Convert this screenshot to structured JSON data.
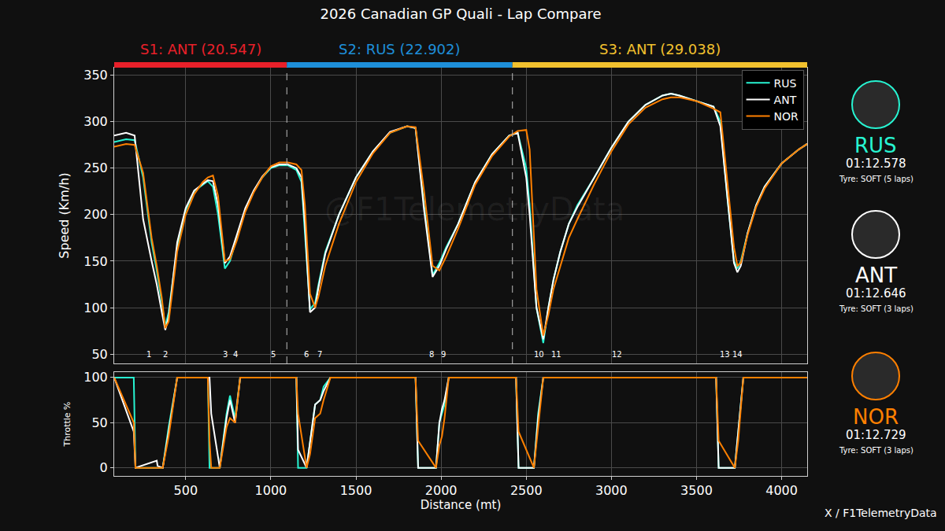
{
  "title": "2026 Canadian GP Quali - Lap Compare",
  "watermark": "@F1TelemetryData",
  "footer": "X / F1TelemetryData",
  "drivers": [
    {
      "code": "RUS",
      "color": "#27f4d2",
      "lap_time": "01:12.578",
      "tyre": "Tyre: SOFT (5 laps)"
    },
    {
      "code": "ANT",
      "color": "#ffffff",
      "lap_time": "01:12.646",
      "tyre": "Tyre: SOFT (3 laps)"
    },
    {
      "code": "NOR",
      "color": "#ff8000",
      "lap_time": "01:12.729",
      "tyre": "Tyre: SOFT (3 laps)"
    }
  ],
  "chart_data": [
    {
      "type": "line",
      "y_label": "Speed (Km/h)",
      "xlim": [
        80,
        4150
      ],
      "xticks": [
        500,
        1000,
        1500,
        2000,
        2500,
        3000,
        3500,
        4000
      ],
      "ylim": [
        40,
        358
      ],
      "yticks": [
        50,
        100,
        150,
        200,
        250,
        300,
        350
      ],
      "grid": true,
      "legend": "top right",
      "sectors": [
        {
          "label": "S1: ANT (20.547)",
          "color": "#e8202a"
        },
        {
          "label": "S2: RUS (22.902)",
          "color": "#1e8fd9"
        },
        {
          "label": "S3: ANT (29.038)",
          "color": "#f2c12e"
        }
      ],
      "sector_boundaries": [
        1094,
        2419
      ],
      "turns": [
        {
          "label": "1",
          "x": 282
        },
        {
          "label": "2",
          "x": 379
        },
        {
          "label": "3",
          "x": 734
        },
        {
          "label": "4",
          "x": 794
        },
        {
          "label": "5",
          "x": 1016
        },
        {
          "label": "6",
          "x": 1209
        },
        {
          "label": "7",
          "x": 1288
        },
        {
          "label": "8",
          "x": 1943
        },
        {
          "label": "9",
          "x": 2012
        },
        {
          "label": "10",
          "x": 2576
        },
        {
          "label": "11",
          "x": 2678
        },
        {
          "label": "12",
          "x": 3033
        },
        {
          "label": "13",
          "x": 3665
        },
        {
          "label": "14",
          "x": 3740
        }
      ],
      "x": [
        80,
        150,
        200,
        250,
        300,
        330,
        360,
        380,
        400,
        450,
        500,
        550,
        600,
        630,
        660,
        690,
        730,
        760,
        800,
        850,
        900,
        950,
        1000,
        1050,
        1100,
        1150,
        1180,
        1200,
        1230,
        1260,
        1280,
        1320,
        1400,
        1500,
        1600,
        1700,
        1800,
        1850,
        1900,
        1950,
        1990,
        2030,
        2100,
        2200,
        2300,
        2400,
        2450,
        2500,
        2520,
        2560,
        2600,
        2630,
        2660,
        2700,
        2750,
        2800,
        2900,
        3000,
        3100,
        3200,
        3300,
        3350,
        3400,
        3500,
        3600,
        3640,
        3680,
        3720,
        3740,
        3760,
        3800,
        3850,
        3900,
        4000,
        4100,
        4150
      ],
      "series": [
        {
          "name": "RUS",
          "color": "#27f4d2",
          "line_style": "solid",
          "values": [
            278,
            281,
            280,
            240,
            170,
            140,
            105,
            80,
            95,
            165,
            205,
            225,
            232,
            236,
            230,
            200,
            142,
            150,
            175,
            205,
            225,
            240,
            250,
            253,
            253,
            248,
            235,
            180,
            98,
            105,
            125,
            160,
            200,
            240,
            268,
            288,
            295,
            293,
            210,
            135,
            148,
            165,
            190,
            235,
            265,
            285,
            288,
            250,
            210,
            100,
            62,
            100,
            130,
            160,
            190,
            210,
            240,
            272,
            300,
            318,
            328,
            330,
            328,
            322,
            316,
            300,
            220,
            150,
            142,
            150,
            180,
            210,
            230,
            255,
            270,
            276
          ]
        },
        {
          "name": "ANT",
          "color": "#ffffff",
          "line_style": "solid",
          "values": [
            285,
            288,
            285,
            195,
            150,
            125,
            95,
            76,
            90,
            170,
            207,
            226,
            233,
            237,
            236,
            210,
            148,
            155,
            178,
            207,
            226,
            241,
            251,
            254,
            254,
            250,
            240,
            190,
            95,
            100,
            122,
            158,
            200,
            240,
            268,
            289,
            295,
            293,
            205,
            133,
            145,
            163,
            190,
            235,
            265,
            285,
            288,
            240,
            200,
            100,
            66,
            100,
            130,
            160,
            190,
            208,
            240,
            272,
            300,
            318,
            328,
            330,
            328,
            322,
            316,
            295,
            220,
            148,
            138,
            145,
            180,
            210,
            230,
            255,
            270,
            276
          ]
        },
        {
          "name": "NOR",
          "color": "#ff8000",
          "line_style": "solid",
          "values": [
            273,
            276,
            275,
            245,
            175,
            145,
            110,
            78,
            85,
            160,
            200,
            222,
            235,
            240,
            242,
            220,
            150,
            152,
            172,
            203,
            224,
            240,
            252,
            256,
            256,
            254,
            248,
            210,
            115,
            100,
            112,
            145,
            190,
            235,
            266,
            288,
            295,
            294,
            225,
            145,
            140,
            155,
            185,
            232,
            263,
            284,
            290,
            291,
            270,
            120,
            70,
            92,
            120,
            145,
            175,
            195,
            233,
            268,
            297,
            315,
            324,
            326,
            326,
            322,
            314,
            310,
            240,
            165,
            145,
            148,
            178,
            208,
            228,
            255,
            270,
            276
          ]
        }
      ]
    },
    {
      "type": "line",
      "x_label": "Distance (mt)",
      "y_label": "Throttle %",
      "xlim": [
        80,
        4150
      ],
      "xticks": [
        500,
        1000,
        1500,
        2000,
        2500,
        3000,
        3500,
        4000
      ],
      "ylim": [
        -9,
        106
      ],
      "yticks": [
        0,
        50,
        100
      ],
      "grid": true,
      "x": [
        80,
        195,
        205,
        330,
        335,
        365,
        400,
        450,
        630,
        640,
        650,
        700,
        740,
        760,
        790,
        820,
        1150,
        1160,
        1210,
        1230,
        1260,
        1290,
        1310,
        1350,
        1850,
        1865,
        1970,
        1990,
        2005,
        2020,
        2045,
        2440,
        2455,
        2545,
        2570,
        2600,
        3615,
        3630,
        3725,
        3745,
        3775,
        4150
      ],
      "series": [
        {
          "name": "RUS",
          "color": "#27f4d2",
          "line_style": "solid",
          "values": [
            100,
            100,
            0,
            0,
            0,
            0,
            45,
            100,
            100,
            0,
            0,
            0,
            60,
            80,
            55,
            100,
            100,
            0,
            0,
            30,
            70,
            75,
            90,
            100,
            100,
            0,
            0,
            50,
            60,
            70,
            100,
            100,
            0,
            0,
            60,
            100,
            100,
            0,
            0,
            40,
            100,
            100
          ]
        },
        {
          "name": "ANT",
          "color": "#ffffff",
          "line_style": "solid",
          "values": [
            100,
            40,
            0,
            8,
            2,
            0,
            40,
            100,
            100,
            100,
            60,
            0,
            55,
            75,
            50,
            100,
            100,
            20,
            0,
            30,
            70,
            75,
            85,
            100,
            100,
            0,
            0,
            50,
            65,
            75,
            100,
            100,
            0,
            0,
            55,
            100,
            100,
            0,
            0,
            40,
            100,
            100
          ]
        },
        {
          "name": "NOR",
          "color": "#ff8000",
          "line_style": "solid",
          "values": [
            100,
            50,
            0,
            0,
            0,
            0,
            35,
            100,
            100,
            30,
            0,
            0,
            45,
            55,
            50,
            100,
            100,
            60,
            0,
            15,
            55,
            60,
            75,
            100,
            100,
            30,
            0,
            25,
            35,
            55,
            100,
            100,
            40,
            0,
            45,
            100,
            100,
            30,
            0,
            30,
            100,
            100
          ]
        }
      ]
    }
  ]
}
